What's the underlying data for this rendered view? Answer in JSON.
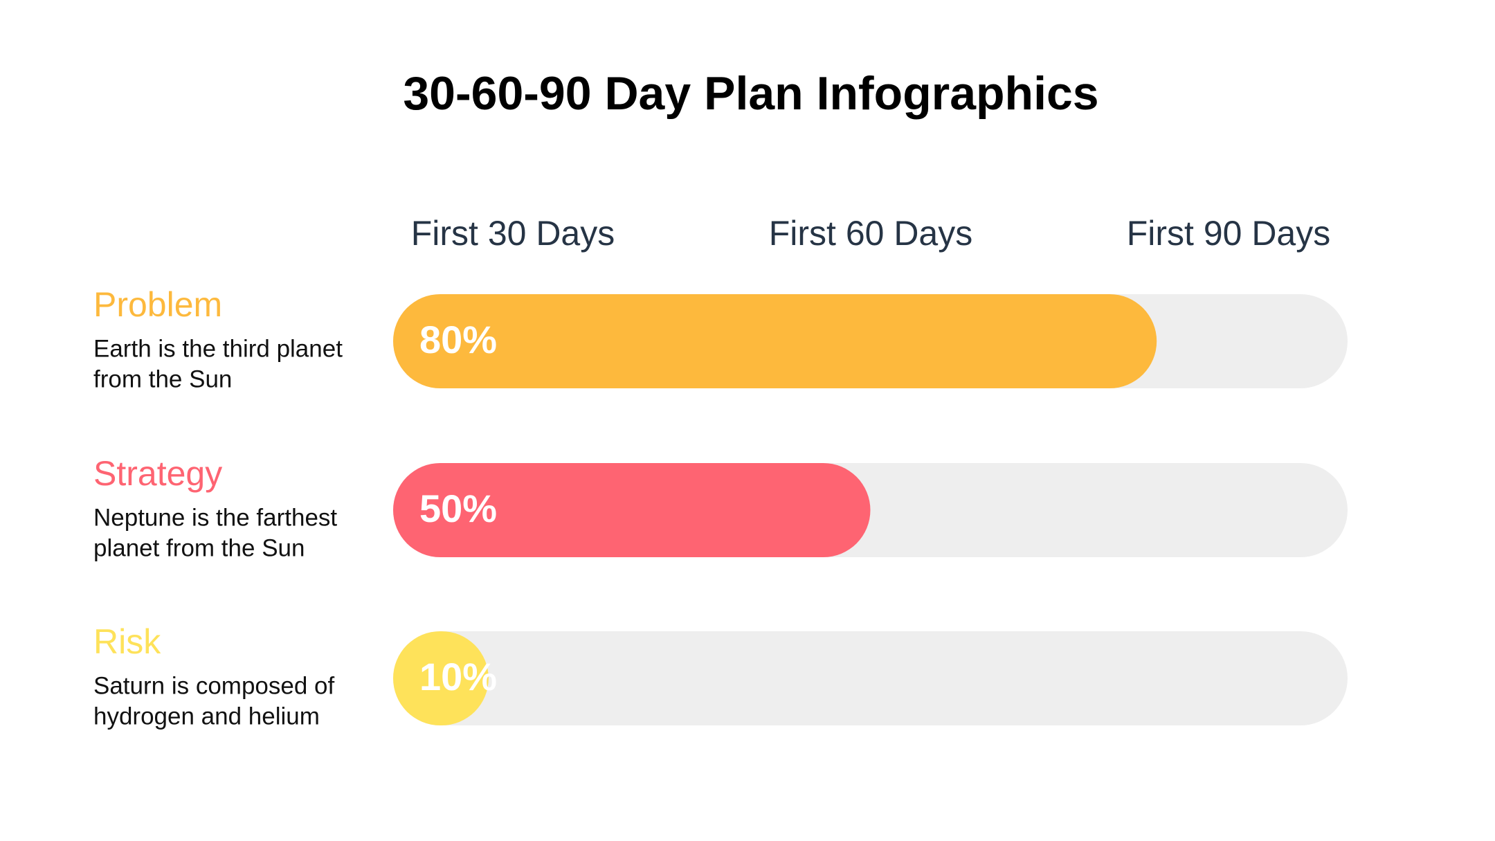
{
  "chart_data": {
    "type": "bar",
    "title": "30-60-90 Day Plan Infographics",
    "columns": [
      "First 30 Days",
      "First 60 Days",
      "First 90 Days"
    ],
    "categories": [
      "Problem",
      "Strategy",
      "Risk"
    ],
    "descriptions": [
      [
        "Earth is the third planet",
        "from the Sun"
      ],
      [
        "Neptune is the farthest",
        "planet from the Sun"
      ],
      [
        "Saturn is composed of",
        "hydrogen and helium"
      ]
    ],
    "values": [
      80,
      50,
      10
    ],
    "value_labels": [
      "80%",
      "50%",
      "10%"
    ],
    "colors": [
      "#fdb93d",
      "#fe6472",
      "#fee25a"
    ],
    "track_color": "#eeeeee",
    "xlim": [
      0,
      100
    ]
  }
}
